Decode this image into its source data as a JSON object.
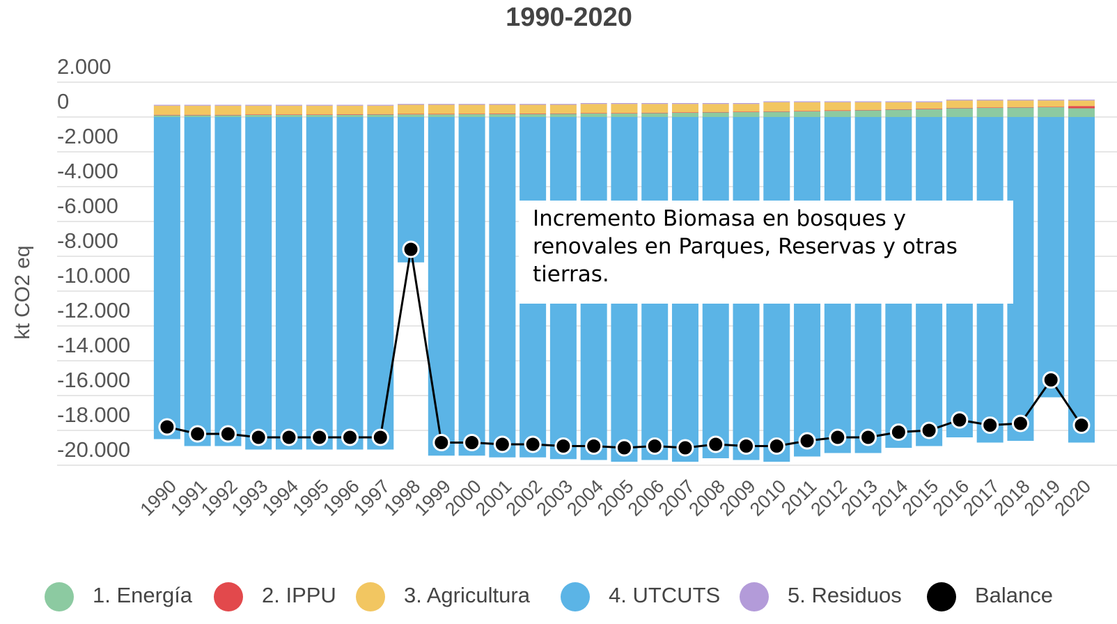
{
  "chart_data": {
    "type": "bar",
    "stacked": true,
    "title": "1990-2020",
    "y_label": "kt CO2 eq",
    "annotation": "Incremento Biomasa en bosques y renovales en Parques, Reservas y otras tierras.",
    "categories": [
      "1990",
      "1991",
      "1992",
      "1993",
      "1994",
      "1995",
      "1996",
      "1997",
      "1998",
      "1999",
      "2000",
      "2001",
      "2002",
      "2003",
      "2004",
      "2005",
      "2006",
      "2007",
      "2008",
      "2009",
      "2010",
      "2011",
      "2012",
      "2013",
      "2014",
      "2015",
      "2016",
      "2017",
      "2018",
      "2019",
      "2020"
    ],
    "series": [
      {
        "name": "1. Energía",
        "color": "#8ccaa1",
        "values": [
          100,
          100,
          100,
          120,
          120,
          120,
          130,
          140,
          150,
          150,
          160,
          170,
          170,
          180,
          200,
          200,
          220,
          240,
          260,
          280,
          300,
          320,
          350,
          380,
          420,
          450,
          500,
          520,
          540,
          560,
          500
        ]
      },
      {
        "name": "2. IPPU",
        "color": "#e2494c",
        "values": [
          30,
          30,
          30,
          30,
          30,
          30,
          30,
          30,
          30,
          30,
          30,
          30,
          30,
          30,
          30,
          30,
          30,
          30,
          30,
          30,
          30,
          30,
          30,
          30,
          30,
          30,
          30,
          30,
          30,
          30,
          130
        ]
      },
      {
        "name": "3. Agricultura",
        "color": "#f2c661",
        "values": [
          520,
          520,
          520,
          500,
          500,
          500,
          490,
          480,
          520,
          520,
          510,
          500,
          500,
          490,
          520,
          520,
          500,
          480,
          460,
          440,
          520,
          500,
          470,
          440,
          400,
          370,
          420,
          400,
          380,
          360,
          320
        ]
      },
      {
        "name": "4. UTCUTS",
        "color": "#5bb4e6",
        "values": [
          -18500,
          -18900,
          -18900,
          -19100,
          -19100,
          -19100,
          -19100,
          -19100,
          -8350,
          -19450,
          -19450,
          -19550,
          -19550,
          -19650,
          -19700,
          -19800,
          -19700,
          -19800,
          -19600,
          -19700,
          -19800,
          -19500,
          -19300,
          -19300,
          -19000,
          -18900,
          -18400,
          -18700,
          -18600,
          -16100,
          -18700
        ]
      },
      {
        "name": "5. Residuos",
        "color": "#b39bd9",
        "values": [
          50,
          50,
          50,
          50,
          50,
          50,
          50,
          50,
          50,
          50,
          50,
          50,
          50,
          50,
          50,
          50,
          50,
          50,
          50,
          50,
          50,
          50,
          50,
          50,
          50,
          50,
          50,
          50,
          50,
          50,
          50
        ]
      },
      {
        "name": "Balance",
        "type": "line",
        "color": "#000000",
        "values": [
          -17800,
          -18200,
          -18200,
          -18400,
          -18400,
          -18400,
          -18400,
          -18400,
          -7600,
          -18700,
          -18700,
          -18800,
          -18800,
          -18900,
          -18900,
          -19000,
          -18900,
          -19000,
          -18800,
          -18900,
          -18900,
          -18600,
          -18400,
          -18400,
          -18100,
          -18000,
          -17400,
          -17700,
          -17600,
          -15100,
          -17700
        ]
      }
    ],
    "ylim": [
      -20000,
      2000
    ],
    "yticks": [
      {
        "value": 2000,
        "label": "2.000"
      },
      0,
      {
        "value": -2000,
        "label": "-2.000"
      },
      {
        "value": -4000,
        "label": "-4.000"
      },
      {
        "value": -6000,
        "label": "-6.000"
      },
      {
        "value": -8000,
        "label": "-8.000"
      },
      {
        "value": -10000,
        "label": "-10.000"
      },
      {
        "value": -12000,
        "label": "-12.000"
      },
      {
        "value": -14000,
        "label": "-14.000"
      },
      {
        "value": -16000,
        "label": "-16.000"
      },
      {
        "value": -18000,
        "label": "-18.000"
      },
      {
        "value": -20000,
        "label": "-20.000"
      }
    ],
    "grid": true,
    "legend": "bottom"
  }
}
